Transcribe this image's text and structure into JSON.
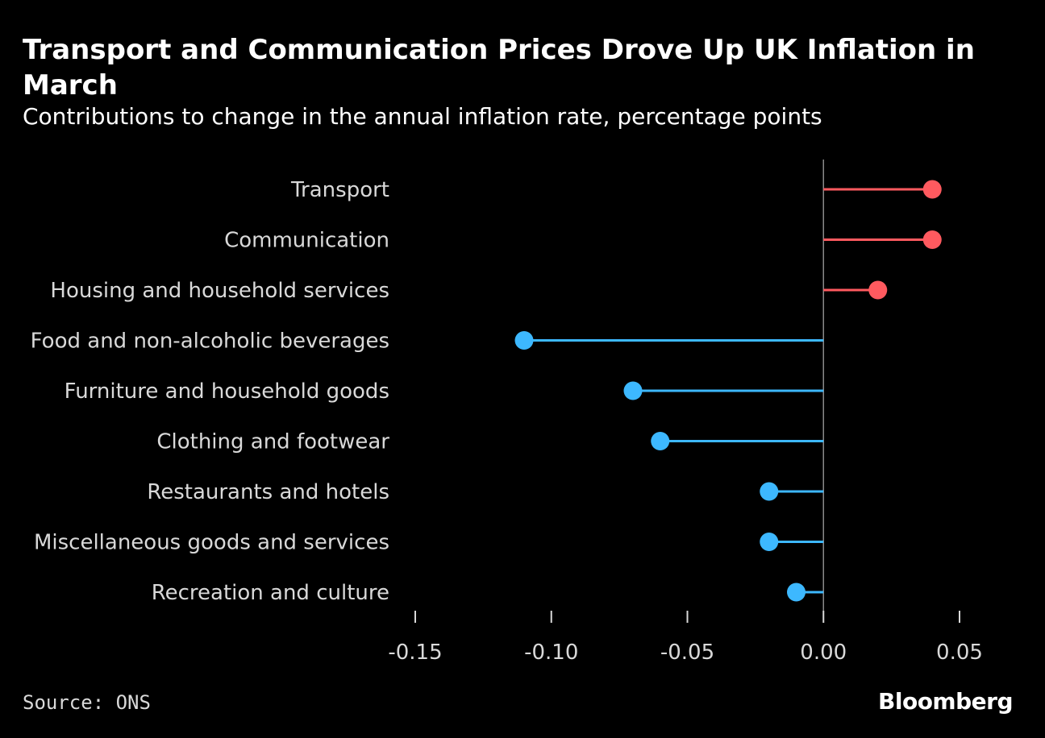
{
  "header": {
    "title": "Transport and Communication Prices Drove Up UK Inflation in March",
    "subtitle": "Contributions to change in the annual inflation rate, percentage points"
  },
  "footer": {
    "source": "Source: ONS",
    "brand": "Bloomberg"
  },
  "colors": {
    "positive": "#ff5a5f",
    "negative": "#3db8ff",
    "axis": "#8a8a8a",
    "label": "#d9d9d9"
  },
  "chart_data": {
    "type": "lollipop",
    "title": "Transport and Communication Prices Drove Up UK Inflation in March",
    "subtitle": "Contributions to change in the annual inflation rate, percentage points",
    "xlabel": "",
    "ylabel": "",
    "categories": [
      "Transport",
      "Communication",
      "Housing and household services",
      "Food and non-alcoholic beverages",
      "Furniture and household goods",
      "Clothing and footwear",
      "Restaurants and hotels",
      "Miscellaneous goods and services",
      "Recreation and culture"
    ],
    "values": [
      0.04,
      0.04,
      0.02,
      -0.11,
      -0.07,
      -0.06,
      -0.02,
      -0.02,
      -0.01
    ],
    "xlim": [
      -0.15,
      0.05
    ],
    "xticks": [
      -0.15,
      -0.1,
      -0.05,
      0.0,
      0.05
    ],
    "xtick_labels": [
      "-0.15",
      "-0.10",
      "-0.05",
      "0.00",
      "0.05"
    ],
    "grid": false,
    "legend": "none"
  }
}
